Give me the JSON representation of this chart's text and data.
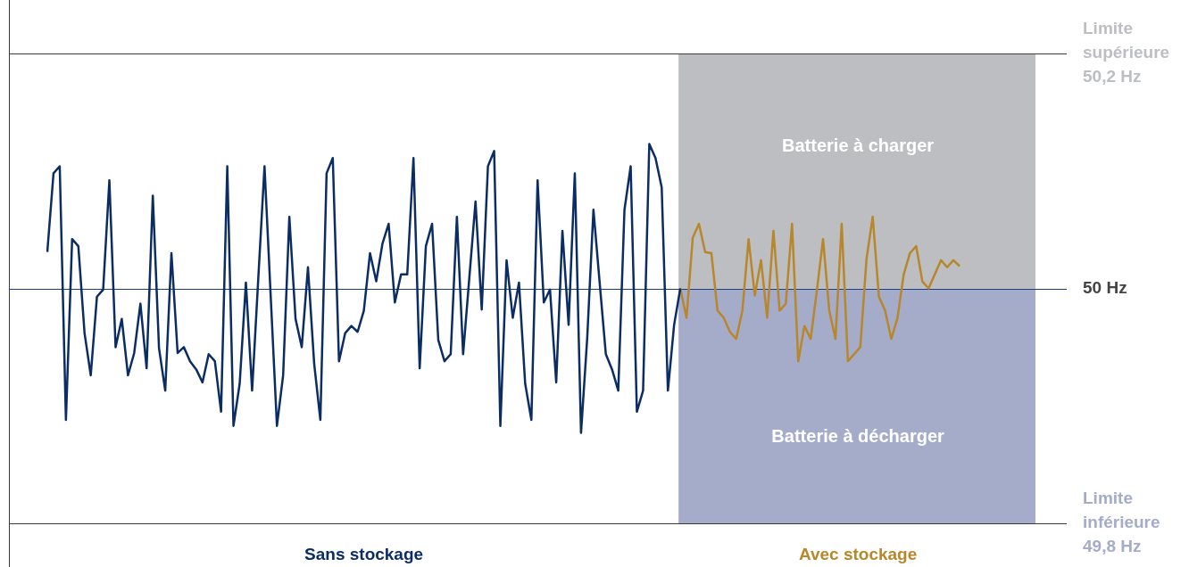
{
  "chart_data": {
    "type": "line",
    "categories": [
      null,
      null,
      null,
      null,
      null,
      null,
      null,
      null,
      null,
      null,
      null,
      null,
      null,
      null,
      null,
      null,
      null,
      null,
      null,
      null,
      null,
      null,
      null,
      null,
      null,
      null,
      null,
      null,
      null,
      null,
      null,
      null,
      null,
      null,
      null,
      null,
      null,
      null,
      null,
      null,
      null,
      null,
      null,
      null,
      null,
      null,
      null,
      null,
      null,
      null,
      null,
      null,
      null,
      null,
      null,
      null,
      null,
      null,
      null,
      null,
      null,
      null,
      null,
      null,
      null,
      null,
      null,
      null,
      null,
      null,
      null,
      null,
      null,
      null,
      null,
      null,
      null,
      null,
      null,
      null,
      null,
      null,
      null,
      null,
      null,
      null,
      null,
      null,
      null,
      null,
      null,
      null,
      null,
      null,
      null,
      null,
      null,
      null,
      null,
      null,
      null,
      null,
      null,
      null,
      null,
      null,
      null,
      null,
      null,
      null,
      null,
      null,
      null,
      null,
      null,
      null,
      null,
      null,
      null,
      null,
      null,
      null,
      null,
      null,
      null,
      null,
      null,
      null,
      null,
      null,
      null,
      null,
      null,
      null,
      null,
      null,
      null,
      null,
      null,
      null,
      null,
      null,
      null,
      null,
      null,
      null,
      null,
      null
    ],
    "series": [
      {
        "name": "Sans stockage",
        "color": "#0b2d64",
        "values": [
          50.031,
          50.098,
          50.104,
          49.888,
          50.042,
          50.036,
          49.962,
          49.926,
          49.993,
          49.999,
          50.092,
          49.95,
          49.974,
          49.926,
          49.945,
          49.987,
          49.932,
          50.079,
          49.949,
          49.913,
          50.03,
          49.945,
          49.95,
          49.938,
          49.931,
          49.92,
          49.944,
          49.938,
          49.895,
          50.104,
          49.883,
          49.919,
          50.005,
          49.913,
          50.009,
          50.104,
          49.993,
          49.883,
          49.926,
          50.061,
          49.974,
          49.95,
          50.018,
          49.936,
          49.888,
          50.098,
          50.111,
          49.938,
          49.962,
          49.968,
          49.963,
          49.981,
          50.03,
          50.006,
          50.038,
          50.055,
          49.988,
          50.012,
          50.012,
          50.111,
          49.932,
          50.036,
          50.055,
          49.956,
          49.938,
          49.944,
          50.061,
          49.944,
          50.009,
          50.074,
          49.982,
          50.104,
          50.117,
          49.883,
          50.024,
          49.975,
          50.005,
          49.919,
          49.888,
          50.092,
          49.988,
          49.999,
          49.92,
          50.049,
          49.969,
          50.098,
          49.877,
          49.958,
          50.067,
          50.005,
          49.944,
          49.931,
          49.913,
          50.067,
          50.104,
          49.895,
          49.913,
          50.123,
          50.111,
          50.086,
          49.913,
          49.969,
          50.0,
          null,
          null,
          null,
          null,
          null,
          null,
          null,
          null,
          null,
          null,
          null,
          null,
          null,
          null,
          null,
          null,
          null,
          null,
          null,
          null,
          null,
          null,
          null,
          null,
          null,
          null,
          null,
          null,
          null,
          null,
          null,
          null,
          null,
          null,
          null,
          null,
          null,
          null,
          null,
          null,
          null,
          null,
          null,
          null,
          null
        ]
      },
      {
        "name": "Avec stockage",
        "color": "#b8862b",
        "values": [
          null,
          null,
          null,
          null,
          null,
          null,
          null,
          null,
          null,
          null,
          null,
          null,
          null,
          null,
          null,
          null,
          null,
          null,
          null,
          null,
          null,
          null,
          null,
          null,
          null,
          null,
          null,
          null,
          null,
          null,
          null,
          null,
          null,
          null,
          null,
          null,
          null,
          null,
          null,
          null,
          null,
          null,
          null,
          null,
          null,
          null,
          null,
          null,
          null,
          null,
          null,
          null,
          null,
          null,
          null,
          null,
          null,
          null,
          null,
          null,
          null,
          null,
          null,
          null,
          null,
          null,
          null,
          null,
          null,
          null,
          null,
          null,
          null,
          null,
          null,
          null,
          null,
          null,
          null,
          null,
          null,
          null,
          null,
          null,
          null,
          null,
          null,
          null,
          null,
          null,
          null,
          null,
          null,
          null,
          null,
          null,
          null,
          null,
          null,
          null,
          null,
          null,
          50.0,
          49.975,
          50.043,
          50.055,
          50.031,
          50.03,
          49.981,
          49.975,
          49.963,
          49.957,
          49.981,
          50.042,
          49.994,
          50.024,
          49.975,
          50.049,
          49.981,
          49.987,
          50.055,
          49.938,
          49.968,
          49.957,
          49.998,
          50.042,
          49.981,
          49.957,
          50.055,
          49.938,
          49.944,
          49.95,
          50.025,
          50.061,
          49.993,
          49.981,
          49.957,
          49.975,
          50.012,
          50.03,
          50.036,
          50.006,
          50.0,
          50.012,
          50.024,
          50.018,
          50.024,
          50.019
        ]
      }
    ],
    "ylim": [
      49.8,
      50.2
    ],
    "ref_lines": [
      {
        "axis": "y",
        "value": 50.2,
        "label": "Limite\nsupérieure\n50,2 Hz",
        "color": "#3a3a3a"
      },
      {
        "axis": "y",
        "value": 50,
        "label": "50 Hz",
        "color": "#1a3a78"
      },
      {
        "axis": "y",
        "value": 49.8,
        "label": "Limite\ninférieure\n49,8 Hz",
        "color": "#3a3a3a"
      }
    ],
    "bands": [
      {
        "axis": "y",
        "from": 50,
        "to": 50.2,
        "label": "Batterie à charger",
        "color": "#bdbec2"
      },
      {
        "axis": "y",
        "from": 49.8,
        "to": 50,
        "label": "Batterie à décharger",
        "color": "#a5acca"
      }
    ],
    "legend": false,
    "marker": "none",
    "line_style": "solid"
  }
}
